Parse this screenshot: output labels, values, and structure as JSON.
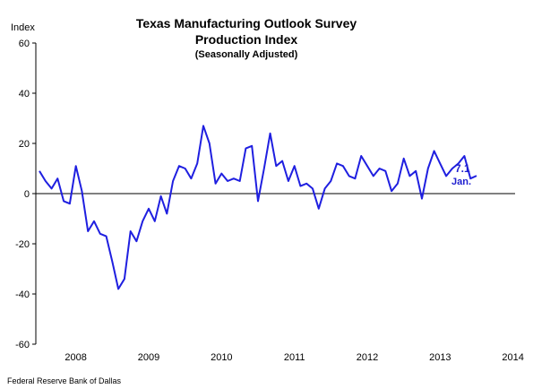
{
  "chart_data": {
    "type": "line",
    "title": "Texas Manufacturing Outlook Survey",
    "subtitle": "Production Index",
    "subtitle2": "(Seasonally Adjusted)",
    "ylabel": "Index",
    "ylim": [
      -60,
      60
    ],
    "yticks": [
      -60,
      -40,
      -20,
      0,
      20,
      40,
      60
    ],
    "xlim": [
      2008,
      2014.5
    ],
    "xticks": [
      "2008",
      "2009",
      "2010",
      "2011",
      "2012",
      "2013",
      "2014"
    ],
    "grid": false,
    "legend": "none",
    "line_color": "#1f1fe0",
    "series": [
      {
        "x": [
          2008.0,
          2008.083,
          2008.167,
          2008.25,
          2008.333,
          2008.417,
          2008.5,
          2008.583,
          2008.667,
          2008.75,
          2008.833,
          2008.917,
          2009.0,
          2009.083,
          2009.167,
          2009.25,
          2009.333,
          2009.417,
          2009.5,
          2009.583,
          2009.667,
          2009.75,
          2009.833,
          2009.917,
          2010.0,
          2010.083,
          2010.167,
          2010.25,
          2010.333,
          2010.417,
          2010.5,
          2010.583,
          2010.667,
          2010.75,
          2010.833,
          2010.917,
          2011.0,
          2011.083,
          2011.167,
          2011.25,
          2011.333,
          2011.417,
          2011.5,
          2011.583,
          2011.667,
          2011.75,
          2011.833,
          2011.917,
          2012.0,
          2012.083,
          2012.167,
          2012.25,
          2012.333,
          2012.417,
          2012.5,
          2012.583,
          2012.667,
          2012.75,
          2012.833,
          2012.917,
          2013.0,
          2013.083,
          2013.167,
          2013.25,
          2013.333,
          2013.417,
          2013.5,
          2013.583,
          2013.667,
          2013.75,
          2013.833,
          2013.917,
          2014.0
        ],
        "values": [
          9,
          5,
          2,
          6,
          -3,
          -4,
          11,
          1,
          -15,
          -11,
          -16,
          -17,
          -27,
          -38,
          -34,
          -15,
          -19,
          -11,
          -6,
          -11,
          -1,
          -8,
          5,
          11,
          10,
          6,
          12,
          27,
          20,
          4,
          8,
          5,
          6,
          5,
          18,
          19,
          -3,
          10,
          24,
          11,
          13,
          5,
          11,
          3,
          4,
          2,
          -6,
          2,
          5,
          12,
          11,
          7,
          6,
          15,
          11,
          7,
          10,
          9,
          1,
          4,
          14,
          7,
          9,
          -2,
          10,
          17,
          12,
          7,
          10,
          12,
          15,
          6,
          7.1
        ]
      }
    ],
    "last_value_label": "7.1",
    "last_period_label": "Jan."
  },
  "footer": {
    "source": "Federal Reserve Bank of Dallas"
  }
}
